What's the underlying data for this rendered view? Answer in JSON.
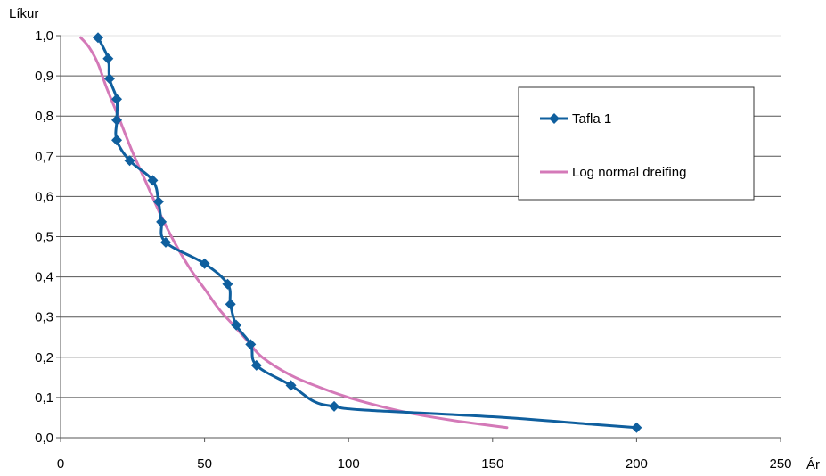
{
  "chart_data": {
    "type": "line",
    "ylabel": "Líkur",
    "xlabel": "Ár",
    "xlim": [
      0,
      250
    ],
    "ylim": [
      0,
      1.0
    ],
    "x_ticks": [
      {
        "value": 0,
        "label": "0"
      },
      {
        "value": 50,
        "label": "50"
      },
      {
        "value": 100,
        "label": "100"
      },
      {
        "value": 150,
        "label": "150"
      },
      {
        "value": 200,
        "label": "200"
      },
      {
        "value": 250,
        "label": "250"
      }
    ],
    "y_ticks": [
      {
        "value": 0.0,
        "label": "0,0"
      },
      {
        "value": 0.1,
        "label": "0,1"
      },
      {
        "value": 0.2,
        "label": "0,2"
      },
      {
        "value": 0.3,
        "label": "0,3"
      },
      {
        "value": 0.4,
        "label": "0,4"
      },
      {
        "value": 0.5,
        "label": "0,5"
      },
      {
        "value": 0.6,
        "label": "0,6"
      },
      {
        "value": 0.7,
        "label": "0,7"
      },
      {
        "value": 0.8,
        "label": "0,8"
      },
      {
        "value": 0.9,
        "label": "0,9"
      },
      {
        "value": 1.0,
        "label": "1,0"
      }
    ],
    "grid": "horizontal",
    "legend_position": "top-right",
    "series": [
      {
        "name": "Tafla 1",
        "color": "#0f5f9e",
        "marker": "diamond",
        "points": [
          {
            "x": 13,
            "y": 0.995,
            "marker": true
          },
          {
            "x": 16.5,
            "y": 0.943,
            "marker": true
          },
          {
            "x": 17,
            "y": 0.893,
            "marker": true
          },
          {
            "x": 19.5,
            "y": 0.842,
            "marker": true
          },
          {
            "x": 19.5,
            "y": 0.79,
            "marker": true
          },
          {
            "x": 19.5,
            "y": 0.74,
            "marker": true
          },
          {
            "x": 24,
            "y": 0.689,
            "marker": true
          },
          {
            "x": 32,
            "y": 0.64,
            "marker": true
          },
          {
            "x": 34,
            "y": 0.587,
            "marker": true
          },
          {
            "x": 35,
            "y": 0.537,
            "marker": true
          },
          {
            "x": 36.5,
            "y": 0.486,
            "marker": true
          },
          {
            "x": 50,
            "y": 0.433,
            "marker": true
          },
          {
            "x": 58,
            "y": 0.382,
            "marker": true
          },
          {
            "x": 59,
            "y": 0.332,
            "marker": true
          },
          {
            "x": 61,
            "y": 0.28,
            "marker": true
          },
          {
            "x": 66,
            "y": 0.232,
            "marker": true
          },
          {
            "x": 68,
            "y": 0.18,
            "marker": true
          },
          {
            "x": 80,
            "y": 0.13,
            "marker": true
          },
          {
            "x": 88,
            "y": 0.09,
            "marker": false
          },
          {
            "x": 95,
            "y": 0.078,
            "marker": true
          },
          {
            "x": 105,
            "y": 0.069,
            "marker": false
          },
          {
            "x": 150,
            "y": 0.052,
            "marker": false
          },
          {
            "x": 185,
            "y": 0.033,
            "marker": false
          },
          {
            "x": 200,
            "y": 0.025,
            "marker": true
          }
        ]
      },
      {
        "name": "Log normal dreifing",
        "color": "#d479b8",
        "marker": "none",
        "points": [
          {
            "x": 7,
            "y": 0.995
          },
          {
            "x": 10,
            "y": 0.97
          },
          {
            "x": 13,
            "y": 0.93
          },
          {
            "x": 16,
            "y": 0.87
          },
          {
            "x": 20,
            "y": 0.8
          },
          {
            "x": 25,
            "y": 0.71
          },
          {
            "x": 30,
            "y": 0.63
          },
          {
            "x": 35,
            "y": 0.55
          },
          {
            "x": 40,
            "y": 0.48
          },
          {
            "x": 45,
            "y": 0.42
          },
          {
            "x": 50,
            "y": 0.37
          },
          {
            "x": 55,
            "y": 0.32
          },
          {
            "x": 60,
            "y": 0.28
          },
          {
            "x": 65,
            "y": 0.24
          },
          {
            "x": 70,
            "y": 0.2
          },
          {
            "x": 80,
            "y": 0.155
          },
          {
            "x": 90,
            "y": 0.125
          },
          {
            "x": 100,
            "y": 0.1
          },
          {
            "x": 110,
            "y": 0.08
          },
          {
            "x": 120,
            "y": 0.063
          },
          {
            "x": 130,
            "y": 0.05
          },
          {
            "x": 140,
            "y": 0.039
          },
          {
            "x": 155,
            "y": 0.025
          }
        ]
      }
    ]
  }
}
